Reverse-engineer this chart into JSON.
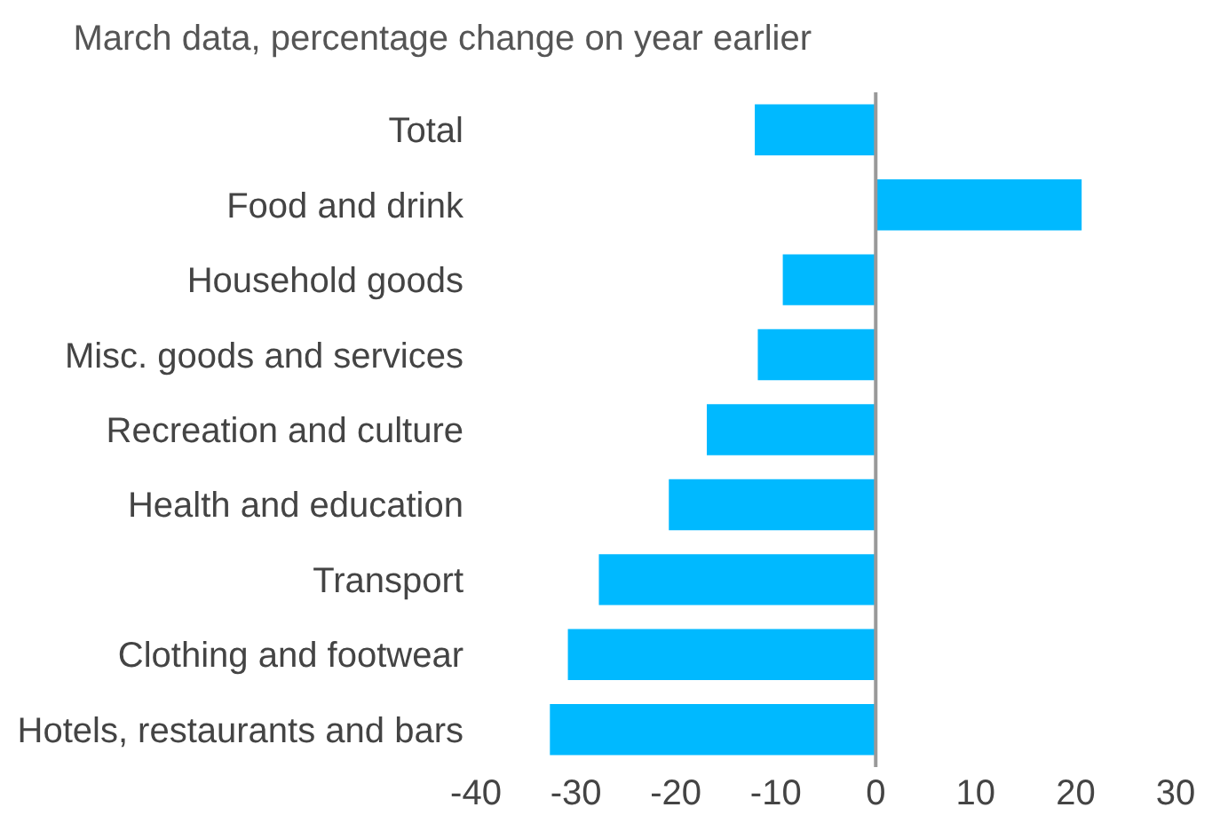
{
  "chart_data": {
    "type": "bar",
    "orientation": "horizontal",
    "title": "March data, percentage change on year earlier",
    "categories": [
      "Total",
      "Food and drink",
      "Household goods",
      "Misc. goods and services",
      "Recreation and culture",
      "Health and education",
      "Transport",
      "Clothing and footwear",
      "Hotels, restaurants and bars"
    ],
    "values": [
      -12.1,
      20.6,
      -9.3,
      -11.8,
      -16.9,
      -20.7,
      -27.7,
      -30.8,
      -32.6
    ],
    "color": "#00b9ff",
    "xlim": [
      -40,
      30
    ],
    "xticks": [
      -40,
      -30,
      -20,
      -10,
      0,
      10,
      20,
      30
    ],
    "ref_lines": [
      {
        "axis": "x",
        "value": 0,
        "color": "#999999"
      }
    ]
  }
}
